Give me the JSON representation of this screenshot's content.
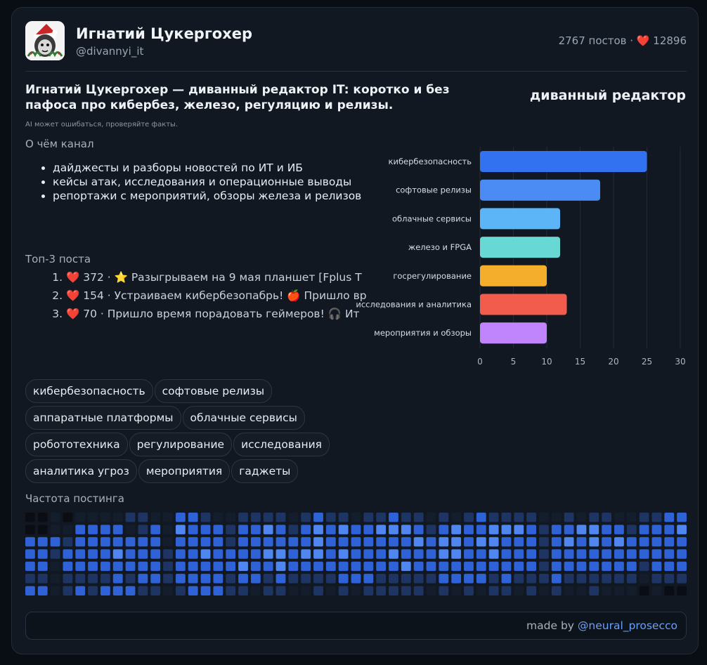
{
  "channel": {
    "name": "Игнатий Цукергохер",
    "handle": "@divannyi_it",
    "stats": "2767 постов · ❤️ 12896"
  },
  "tagline": "Игнатий Цукергохер — диванный редактор IT: коротко и без пафоса про кибербез, железо, регуляцию и релизы.",
  "ai_note": "AI может ошибаться, проверяйте факты.",
  "about": {
    "title": "О чём канал",
    "items": [
      "дайджесты и разборы новостей по ИТ и ИБ",
      "кейсы атак, исследования и операционные выводы",
      "репортажи с мероприятий, обзоры железа и релизов"
    ]
  },
  "top_posts": {
    "title": "Топ-3 поста",
    "items": [
      "❤️ 372 · ⭐ Разыгрываем на 9 мая планшет [Fplus T",
      "❤️ 154 · Устраиваем кибербезопабрь! 🍎 Пришло вр",
      "❤️ 70 · Пришло время порадовать геймеров! 🎧 Ит"
    ]
  },
  "chart_data": {
    "type": "bar",
    "orientation": "horizontal",
    "title": "диванный редактор",
    "categories": [
      "кибербезопасность",
      "софтовые релизы",
      "облачные сервисы",
      "железо и FPGA",
      "госрегулирование",
      "исследования и аналитика",
      "мероприятия и обзоры"
    ],
    "values": [
      25,
      18,
      12,
      12,
      10,
      13,
      10
    ],
    "colors": [
      "#3271f0",
      "#4a8cf3",
      "#5bb5f7",
      "#67d8d4",
      "#f5ad2c",
      "#f25c4c",
      "#c084fc"
    ],
    "xlim": [
      0,
      30
    ],
    "ticks": [
      0,
      5,
      10,
      15,
      20,
      25,
      30
    ],
    "grid": true
  },
  "tags": [
    "кибербезопасность",
    "софтовые релизы",
    "аппаратные платформы",
    "облачные сервисы",
    "робототехника",
    "регулирование",
    "исследования",
    "аналитика угроз",
    "мероприятия",
    "гаджеты"
  ],
  "activity": {
    "title": "Частота постинга",
    "levels": [
      [
        0,
        0,
        1,
        0,
        1,
        1,
        1,
        1,
        2,
        2,
        1,
        1,
        3,
        3,
        2,
        1,
        1,
        2,
        2,
        2,
        2,
        1,
        2,
        3,
        2,
        2,
        1,
        2,
        2,
        3,
        2,
        2,
        1,
        2,
        1,
        2,
        3,
        2,
        2,
        2,
        2,
        1,
        1,
        2,
        1,
        2,
        2,
        1,
        1,
        2,
        2,
        3,
        3
      ],
      [
        0,
        0,
        1,
        1,
        3,
        3,
        3,
        3,
        1,
        2,
        3,
        1,
        4,
        3,
        3,
        3,
        2,
        3,
        3,
        4,
        3,
        2,
        3,
        4,
        3,
        4,
        3,
        3,
        4,
        4,
        4,
        3,
        2,
        3,
        4,
        3,
        3,
        4,
        4,
        4,
        3,
        2,
        3,
        3,
        4,
        4,
        3,
        3,
        2,
        3,
        3,
        3,
        4
      ],
      [
        3,
        3,
        3,
        2,
        3,
        3,
        3,
        3,
        3,
        3,
        3,
        1,
        3,
        3,
        3,
        3,
        2,
        3,
        3,
        3,
        3,
        3,
        3,
        4,
        3,
        3,
        3,
        3,
        3,
        3,
        3,
        4,
        3,
        4,
        4,
        3,
        4,
        4,
        3,
        3,
        3,
        2,
        3,
        4,
        3,
        4,
        3,
        4,
        3,
        3,
        3,
        3,
        3
      ],
      [
        3,
        3,
        2,
        3,
        3,
        3,
        3,
        4,
        3,
        3,
        3,
        2,
        3,
        3,
        4,
        3,
        3,
        3,
        3,
        4,
        4,
        3,
        4,
        4,
        3,
        4,
        3,
        3,
        3,
        4,
        3,
        3,
        3,
        4,
        4,
        3,
        3,
        4,
        3,
        3,
        3,
        2,
        3,
        3,
        3,
        3,
        3,
        3,
        3,
        3,
        3,
        3,
        3
      ],
      [
        3,
        3,
        1,
        3,
        3,
        3,
        3,
        3,
        3,
        3,
        3,
        2,
        3,
        3,
        3,
        3,
        3,
        4,
        3,
        3,
        4,
        3,
        3,
        3,
        3,
        3,
        3,
        3,
        3,
        3,
        4,
        3,
        3,
        3,
        3,
        3,
        3,
        3,
        3,
        3,
        3,
        2,
        3,
        3,
        3,
        3,
        3,
        3,
        3,
        2,
        3,
        3,
        3
      ],
      [
        2,
        2,
        1,
        2,
        2,
        2,
        2,
        3,
        2,
        3,
        3,
        2,
        3,
        3,
        3,
        3,
        2,
        3,
        3,
        2,
        3,
        2,
        2,
        2,
        2,
        3,
        3,
        3,
        2,
        2,
        2,
        2,
        2,
        3,
        3,
        3,
        3,
        2,
        3,
        2,
        2,
        2,
        3,
        2,
        2,
        2,
        2,
        2,
        2,
        1,
        2,
        2,
        2
      ],
      [
        3,
        3,
        1,
        2,
        3,
        2,
        3,
        3,
        3,
        2,
        2,
        1,
        2,
        3,
        3,
        3,
        2,
        2,
        1,
        2,
        2,
        1,
        1,
        2,
        1,
        2,
        1,
        2,
        2,
        2,
        2,
        2,
        1,
        2,
        1,
        2,
        1,
        2,
        2,
        1,
        2,
        1,
        2,
        1,
        1,
        2,
        1,
        1,
        1,
        0,
        1,
        0,
        0
      ]
    ]
  },
  "footer": {
    "prefix": "made by ",
    "link": "@neural_prosecco"
  }
}
